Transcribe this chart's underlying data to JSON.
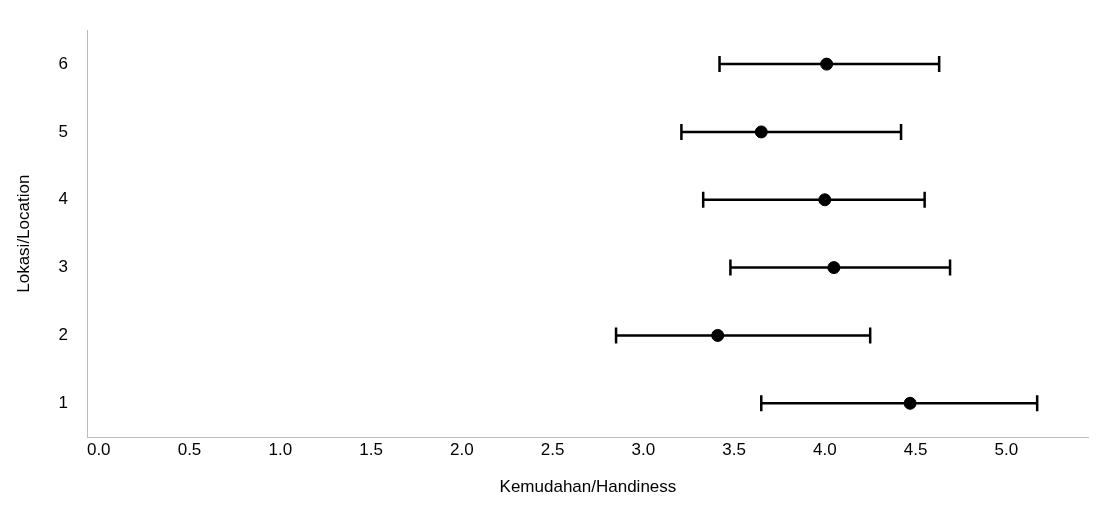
{
  "chart_data": {
    "type": "scatter",
    "orientation": "horizontal",
    "xlabel": "Kemudahan/Handiness",
    "ylabel": "Lokasi/Location",
    "categories": [
      "6",
      "5",
      "4",
      "3",
      "2",
      "1"
    ],
    "values": [
      4.01,
      3.65,
      4.0,
      4.05,
      3.41,
      4.47
    ],
    "errors": [
      [
        3.42,
        4.63
      ],
      [
        3.21,
        4.42
      ],
      [
        3.33,
        4.55
      ],
      [
        3.48,
        4.69
      ],
      [
        2.85,
        4.25
      ],
      [
        3.65,
        5.17
      ]
    ],
    "color": "#000000",
    "marker": "circle",
    "grid": false,
    "xlim": [
      -0.06,
      5.45
    ],
    "xticks": [
      {
        "value": 0,
        "label": "0.0"
      },
      {
        "value": 0.5,
        "label": "0.5"
      },
      {
        "value": 1,
        "label": "1.0"
      },
      {
        "value": 1.5,
        "label": "1.5"
      },
      {
        "value": 2,
        "label": "2.0"
      },
      {
        "value": 2.5,
        "label": "2.5"
      },
      {
        "value": 3,
        "label": "3.0"
      },
      {
        "value": 3.5,
        "label": "3.5"
      },
      {
        "value": 4,
        "label": "4.0"
      },
      {
        "value": 4.5,
        "label": "4.5"
      },
      {
        "value": 5,
        "label": "5.0"
      }
    ]
  }
}
